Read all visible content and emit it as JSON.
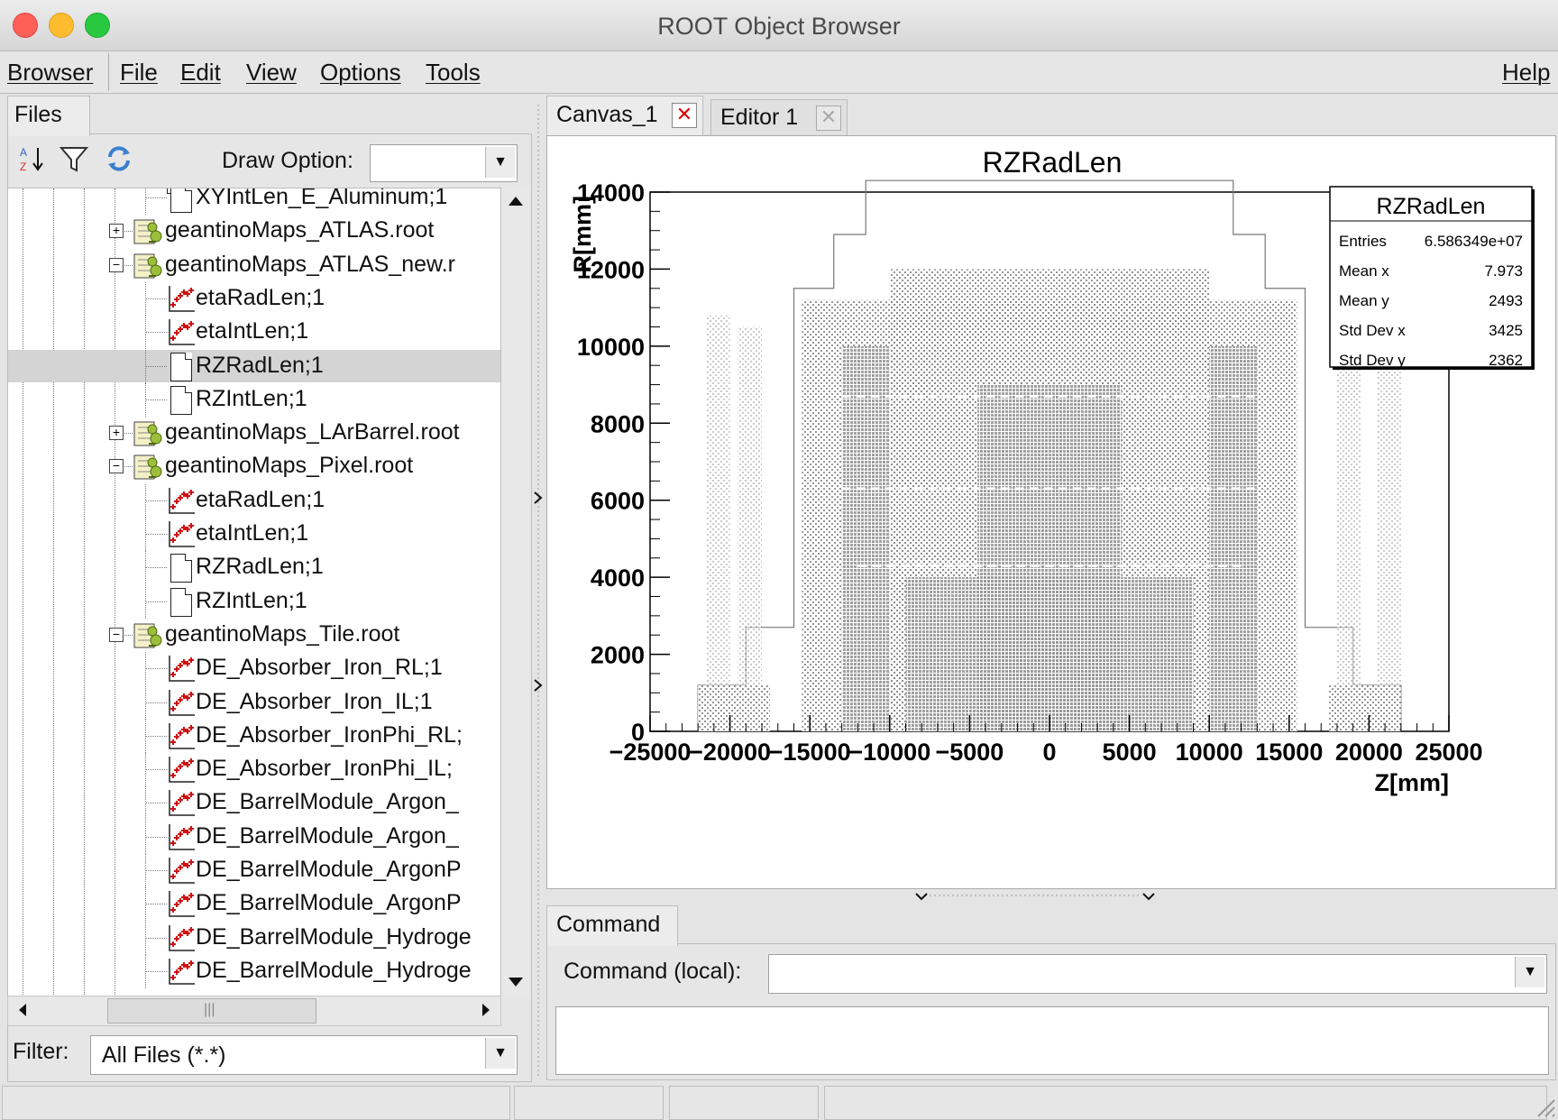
{
  "window": {
    "title": "ROOT Object Browser"
  },
  "menubar": {
    "items": [
      "Browser",
      "File",
      "Edit",
      "View",
      "Options",
      "Tools"
    ],
    "help": "Help"
  },
  "left": {
    "tab": "Files",
    "draw_option_label": "Draw Option:",
    "draw_option_value": "",
    "filter_label": "Filter:",
    "filter_value": "All Files (*.*)",
    "tree": [
      {
        "label": "XYIntLen_E_Aluminum;1",
        "type": "file",
        "level": 2
      },
      {
        "label": "geantinoMaps_ATLAS.root",
        "type": "root",
        "level": 1,
        "expander": "+"
      },
      {
        "label": "geantinoMaps_ATLAS_new.r",
        "type": "root",
        "level": 1,
        "expander": "-"
      },
      {
        "label": "etaRadLen;1",
        "type": "hist",
        "level": 2
      },
      {
        "label": "etaIntLen;1",
        "type": "hist",
        "level": 2
      },
      {
        "label": "RZRadLen;1",
        "type": "file",
        "level": 2,
        "selected": true
      },
      {
        "label": "RZIntLen;1",
        "type": "file",
        "level": 2
      },
      {
        "label": "geantinoMaps_LArBarrel.root",
        "type": "root",
        "level": 1,
        "expander": "+"
      },
      {
        "label": "geantinoMaps_Pixel.root",
        "type": "root",
        "level": 1,
        "expander": "-"
      },
      {
        "label": "etaRadLen;1",
        "type": "hist",
        "level": 2
      },
      {
        "label": "etaIntLen;1",
        "type": "hist",
        "level": 2
      },
      {
        "label": "RZRadLen;1",
        "type": "file",
        "level": 2
      },
      {
        "label": "RZIntLen;1",
        "type": "file",
        "level": 2
      },
      {
        "label": "geantinoMaps_Tile.root",
        "type": "root",
        "level": 1,
        "expander": "-"
      },
      {
        "label": "DE_Absorber_Iron_RL;1",
        "type": "hist",
        "level": 2
      },
      {
        "label": "DE_Absorber_Iron_IL;1",
        "type": "hist",
        "level": 2
      },
      {
        "label": "DE_Absorber_IronPhi_RL;",
        "type": "hist",
        "level": 2
      },
      {
        "label": "DE_Absorber_IronPhi_IL;",
        "type": "hist",
        "level": 2
      },
      {
        "label": "DE_BarrelModule_Argon_",
        "type": "hist",
        "level": 2
      },
      {
        "label": "DE_BarrelModule_Argon_",
        "type": "hist",
        "level": 2
      },
      {
        "label": "DE_BarrelModule_ArgonP",
        "type": "hist",
        "level": 2
      },
      {
        "label": "DE_BarrelModule_ArgonP",
        "type": "hist",
        "level": 2
      },
      {
        "label": "DE_BarrelModule_Hydroge",
        "type": "hist",
        "level": 2
      },
      {
        "label": "DE_BarrelModule_Hydroge",
        "type": "hist",
        "level": 2
      }
    ]
  },
  "right": {
    "tabs": [
      {
        "label": "Canvas_1",
        "close": "✕"
      },
      {
        "label": "Editor 1",
        "close": "✕"
      }
    ],
    "command_tab": "Command",
    "command_label": "Command (local):",
    "command_value": ""
  },
  "chart_data": {
    "type": "heatmap",
    "title": "RZRadLen",
    "xlabel": "Z[mm]",
    "ylabel": "R[mm]",
    "xlim": [
      -25000,
      25000
    ],
    "ylim": [
      0,
      14000
    ],
    "x_ticks": [
      "−25000",
      "−20000",
      "−15000",
      "−10000",
      "−5000",
      "0",
      "5000",
      "10000",
      "15000",
      "20000",
      "25000"
    ],
    "y_ticks": [
      "0",
      "2000",
      "4000",
      "6000",
      "8000",
      "10000",
      "12000",
      "14000"
    ],
    "stats": {
      "title": "RZRadLen",
      "rows": [
        {
          "label": "Entries",
          "value": "6.586349e+07"
        },
        {
          "label": "Mean x",
          "value": "7.973"
        },
        {
          "label": "Mean y",
          "value": "2493"
        },
        {
          "label": "Std Dev x",
          "value": "3425"
        },
        {
          "label": "Std Dev y",
          "value": "2362"
        }
      ]
    }
  }
}
